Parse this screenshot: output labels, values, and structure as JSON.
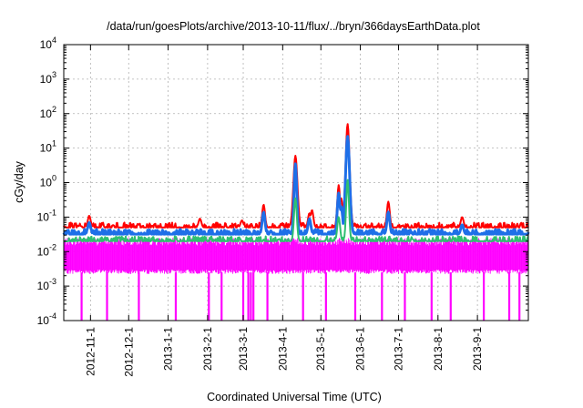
{
  "chart_data": {
    "type": "line",
    "title": "/data/run/goesPlots/archive/2013-10-11/flux/../bryn/366daysEarthData.plot",
    "xlabel": "Coordinated Universal Time (UTC)",
    "ylabel": "cGy/day",
    "yscale": "log",
    "ylim": [
      0.0001,
      10000
    ],
    "xlim": [
      "2012-10-11",
      "2013-10-11"
    ],
    "grid": true,
    "y_ticks": [
      {
        "base": "10",
        "exp": "-4",
        "value": 0.0001
      },
      {
        "base": "10",
        "exp": "-3",
        "value": 0.001
      },
      {
        "base": "10",
        "exp": "-2",
        "value": 0.01
      },
      {
        "base": "10",
        "exp": "-1",
        "value": 0.1
      },
      {
        "base": "10",
        "exp": "0",
        "value": 1
      },
      {
        "base": "10",
        "exp": "1",
        "value": 10
      },
      {
        "base": "10",
        "exp": "2",
        "value": 100
      },
      {
        "base": "10",
        "exp": "3",
        "value": 1000
      },
      {
        "base": "10",
        "exp": "4",
        "value": 10000
      }
    ],
    "x_ticks": [
      "2012-11-1",
      "2012-12-1",
      "2013-1-1",
      "2013-2-1",
      "2013-3-1",
      "2013-4-1",
      "2013-5-1",
      "2013-6-1",
      "2013-7-1",
      "2013-8-1",
      "2013-9-1"
    ],
    "series": [
      {
        "color": "#ff0000",
        "baseline": 0.05,
        "peaks": [
          {
            "x": "2012-10-31",
            "y": 0.11
          },
          {
            "x": "2013-01-26",
            "y": 0.09
          },
          {
            "x": "2013-02-28",
            "y": 0.08
          },
          {
            "x": "2013-03-17",
            "y": 0.23
          },
          {
            "x": "2013-04-11",
            "y": 6.0
          },
          {
            "x": "2013-04-22",
            "y": 0.13
          },
          {
            "x": "2013-04-24",
            "y": 0.16
          },
          {
            "x": "2013-05-15",
            "y": 0.85
          },
          {
            "x": "2013-05-17",
            "y": 0.35
          },
          {
            "x": "2013-05-22",
            "y": 50
          },
          {
            "x": "2013-06-23",
            "y": 0.28
          },
          {
            "x": "2013-08-20",
            "y": 0.1
          }
        ]
      },
      {
        "color": "#1e6fe8",
        "baseline": 0.032,
        "peaks": [
          {
            "x": "2012-10-31",
            "y": 0.07
          },
          {
            "x": "2013-03-17",
            "y": 0.14
          },
          {
            "x": "2013-04-11",
            "y": 3.5
          },
          {
            "x": "2013-04-22",
            "y": 0.09
          },
          {
            "x": "2013-05-15",
            "y": 0.5
          },
          {
            "x": "2013-05-17",
            "y": 0.2
          },
          {
            "x": "2013-05-22",
            "y": 22
          },
          {
            "x": "2013-06-23",
            "y": 0.14
          },
          {
            "x": "2013-08-20",
            "y": 0.06
          }
        ]
      },
      {
        "color": "#2fbf71",
        "baseline": 0.02,
        "peaks": [
          {
            "x": "2013-04-11",
            "y": 0.35
          },
          {
            "x": "2013-05-15",
            "y": 0.1
          },
          {
            "x": "2013-05-22",
            "y": 1.2
          }
        ]
      },
      {
        "color": "#ff00ff",
        "baseline": 0.009,
        "range": [
          0.0025,
          0.025
        ],
        "dropouts": [
          "2012-10-25",
          "2012-11-14",
          "2012-12-09",
          "2013-01-07",
          "2013-02-02",
          "2013-02-12",
          "2013-03-01",
          "2013-03-05",
          "2013-03-07",
          "2013-03-09",
          "2013-03-20",
          "2013-04-17",
          "2013-05-05",
          "2013-05-28",
          "2013-06-18",
          "2013-07-06",
          "2013-07-27",
          "2013-08-11",
          "2013-09-06",
          "2013-09-26",
          "2013-10-04"
        ]
      }
    ]
  }
}
